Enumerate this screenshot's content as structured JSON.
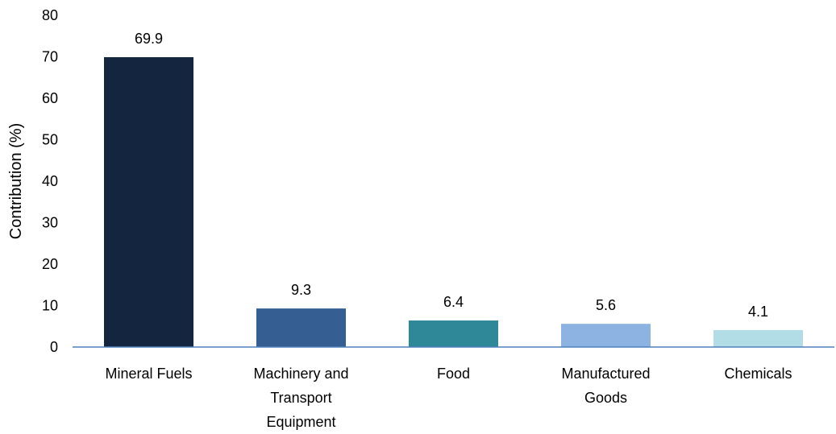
{
  "chart_data": {
    "type": "bar",
    "title": "",
    "xlabel": "",
    "ylabel": "Contribution (%)",
    "ylim": [
      0,
      80
    ],
    "yticks": [
      0,
      10,
      20,
      30,
      40,
      50,
      60,
      70,
      80
    ],
    "grid": false,
    "legend": "none",
    "categories": [
      [
        "Mineral Fuels"
      ],
      [
        "Machinery and",
        "Transport",
        "Equipment"
      ],
      [
        "Food"
      ],
      [
        "Manufactured",
        "Goods"
      ],
      [
        "Chemicals"
      ]
    ],
    "values": [
      69.9,
      9.3,
      6.4,
      5.6,
      4.1
    ],
    "data_labels": [
      "69.9",
      "9.3",
      "6.4",
      "5.6",
      "4.1"
    ],
    "colors": [
      "#13253f",
      "#355f92",
      "#2f8898",
      "#8db3e2",
      "#b3dde6"
    ],
    "axis_color": "#4f81bd"
  }
}
